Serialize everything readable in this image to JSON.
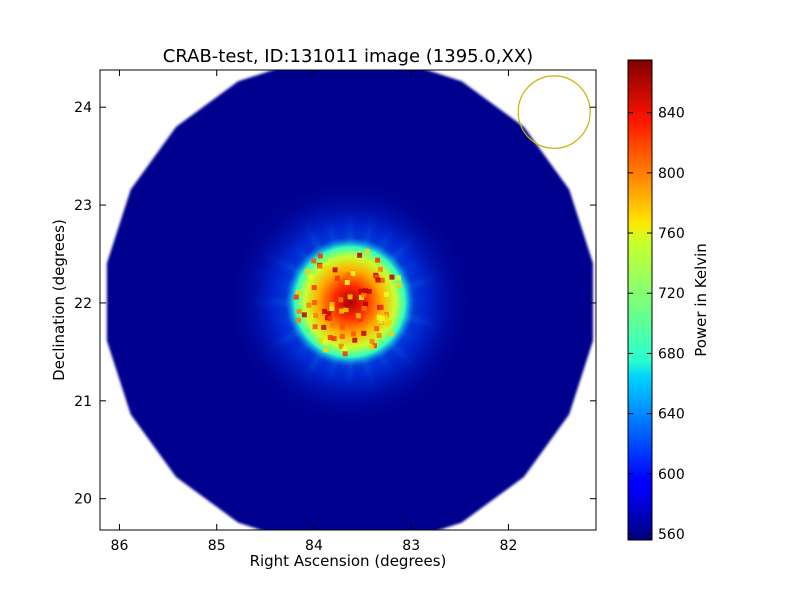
{
  "chart_data": {
    "type": "heatmap",
    "title": "CRAB-test, ID:131011 image (1395.0,XX)",
    "xlabel": "Right Ascension (degrees)",
    "ylabel": "Declination (degrees)",
    "xlim": [
      86.2,
      81.1
    ],
    "ylim": [
      19.68,
      24.38
    ],
    "x_ticks": [
      86,
      85,
      84,
      83,
      82
    ],
    "y_ticks": [
      20,
      21,
      22,
      23,
      24
    ],
    "x_tick_labels": [
      "86",
      "85",
      "84",
      "83",
      "82"
    ],
    "y_tick_labels": [
      "20",
      "21",
      "22",
      "23",
      "24"
    ],
    "colorbar": {
      "label": "Power in Kelvin",
      "colormap": "jet",
      "min": 556,
      "max": 875,
      "ticks": [
        560,
        600,
        640,
        680,
        720,
        760,
        800,
        840
      ],
      "tick_labels": [
        "560",
        "600",
        "640",
        "680",
        "720",
        "760",
        "800",
        "840"
      ]
    },
    "image": {
      "center_ra": 83.63,
      "center_dec": 22.01,
      "radius_deg": 2.53,
      "polygon_sides": 20,
      "background_value": 565,
      "source_peak_value": 860,
      "source_center_ra": 83.63,
      "source_center_dec": 22.01,
      "source_core_radius_deg": 0.35,
      "source_spokes": 24,
      "source_spoke_extent_deg": 0.95
    },
    "beam": {
      "center_ra": 81.53,
      "center_dec": 23.95,
      "radius_deg": 0.37,
      "color": "#c8b400"
    },
    "grid": false
  }
}
